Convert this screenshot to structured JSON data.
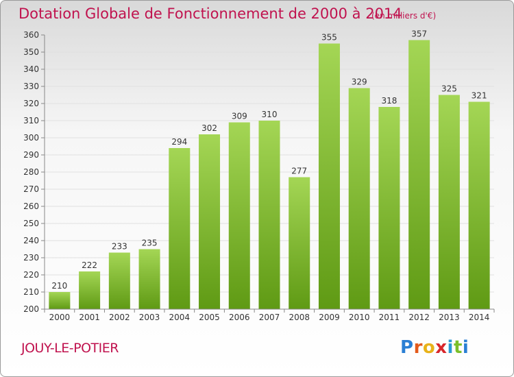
{
  "header": {
    "title": "Dotation Globale de Fonctionnement de 2000 à 2014",
    "unit_note": "(en milliers d'€)"
  },
  "footer": {
    "commune": "JOUY-LE-POTIER",
    "logo_letters": [
      "P",
      "r",
      "o",
      "x",
      "i",
      "t",
      "i"
    ],
    "logo_colors": [
      "#2a7fd4",
      "#e35a1b",
      "#e8b21a",
      "#d8262b",
      "#2a9ad4",
      "#7bbf2a",
      "#2a7fd4"
    ]
  },
  "colors": {
    "bar_top": "#a4d655",
    "bar_bottom": "#5f9a14",
    "text": "#333333",
    "title": "#c0124e",
    "grid": "#e0e0e0"
  },
  "chart_data": {
    "type": "bar",
    "title": "Dotation Globale de Fonctionnement de 2000 à 2014",
    "subtitle": "(en milliers d'€)",
    "xlabel": "",
    "ylabel": "",
    "categories": [
      "2000",
      "2001",
      "2002",
      "2003",
      "2004",
      "2005",
      "2006",
      "2007",
      "2008",
      "2009",
      "2010",
      "2011",
      "2012",
      "2013",
      "2014"
    ],
    "values": [
      210,
      222,
      233,
      235,
      294,
      302,
      309,
      310,
      277,
      355,
      329,
      318,
      357,
      325,
      321
    ],
    "ylim": [
      200,
      360
    ],
    "yticks": [
      200,
      210,
      220,
      230,
      240,
      250,
      260,
      270,
      280,
      290,
      300,
      310,
      320,
      330,
      340,
      350,
      360
    ],
    "grid": true,
    "legend": "none"
  }
}
